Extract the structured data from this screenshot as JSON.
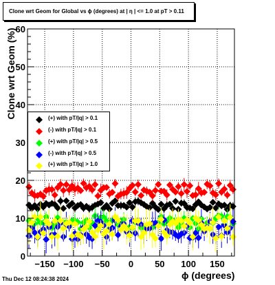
{
  "title": "Clone wrt Geom for Global vs ϕ (degrees) at |  η  | <= 1.0 at pT > 0.11",
  "footer": "Thu Dec 12 08:24:38 2024",
  "chart_data": {
    "type": "scatter",
    "xlabel": "ϕ (degrees)",
    "ylabel": "Clone wrt Geom (%)",
    "xlim": [
      -180,
      180
    ],
    "ylim": [
      0,
      60
    ],
    "x_ticks": [
      -150,
      -100,
      -50,
      0,
      50,
      100,
      150
    ],
    "y_ticks": [
      0,
      10,
      20,
      30,
      40,
      50,
      60
    ],
    "grid": true,
    "legend_position": "left-middle",
    "series": [
      {
        "name": "(+) with pT/|q| > 0.1",
        "color": "#000000",
        "marker": "diamond",
        "mean": 13.5,
        "spread": 1.2,
        "err": 0.8
      },
      {
        "name": "(-) with pT/|q| > 0.1",
        "color": "#ff0000",
        "marker": "diamond",
        "mean": 17.5,
        "spread": 1.8,
        "err": 1.2
      },
      {
        "name": "(+) with pT/|q| > 0.5",
        "color": "#00ff00",
        "marker": "diamond",
        "mean": 9.0,
        "spread": 1.8,
        "err": 1.6
      },
      {
        "name": "(-) with pT/|q| > 0.5",
        "color": "#0000ff",
        "marker": "diamond",
        "mean": 7.0,
        "spread": 2.6,
        "err": 2.5
      },
      {
        "name": "(+) with pT/|q| > 1.0",
        "color": "#ffff00",
        "marker": "diamond",
        "mean": 7.5,
        "spread": 3.0,
        "err": 2.8
      }
    ],
    "bins": 72
  }
}
